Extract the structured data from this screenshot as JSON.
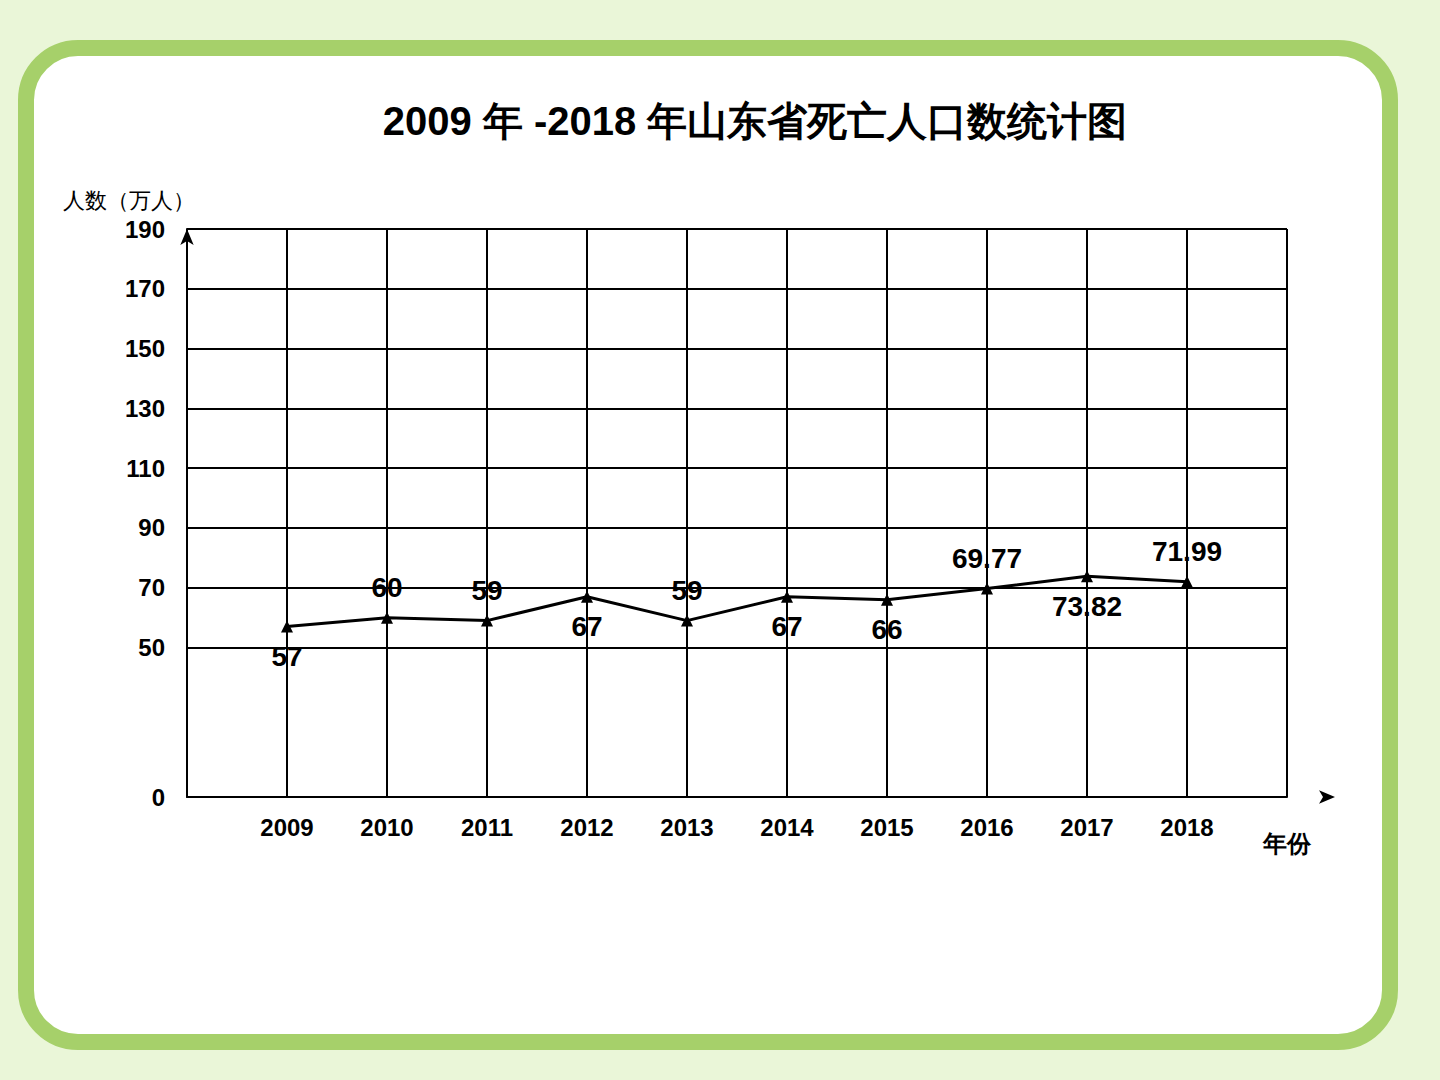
{
  "chart_data": {
    "type": "line",
    "title": "2009 年 -2018 年山东省死亡人口数统计图",
    "y_label": "人数（万人）",
    "x_label": "年份",
    "categories": [
      null,
      "2009",
      "2010",
      "2011",
      "2012",
      "2013",
      "2014",
      "2015",
      "2016",
      "2017",
      "2018",
      null
    ],
    "values": [
      null,
      57,
      60,
      59,
      67,
      59,
      67,
      66,
      69.77,
      73.82,
      71.99,
      null
    ],
    "color": "#000000",
    "marker": "triangle",
    "line_style": "solid",
    "ylim": [
      0,
      190
    ],
    "yticks": [
      0,
      50,
      70,
      90,
      110,
      130,
      150,
      170,
      190
    ],
    "grid": true,
    "data_labels": true
  }
}
